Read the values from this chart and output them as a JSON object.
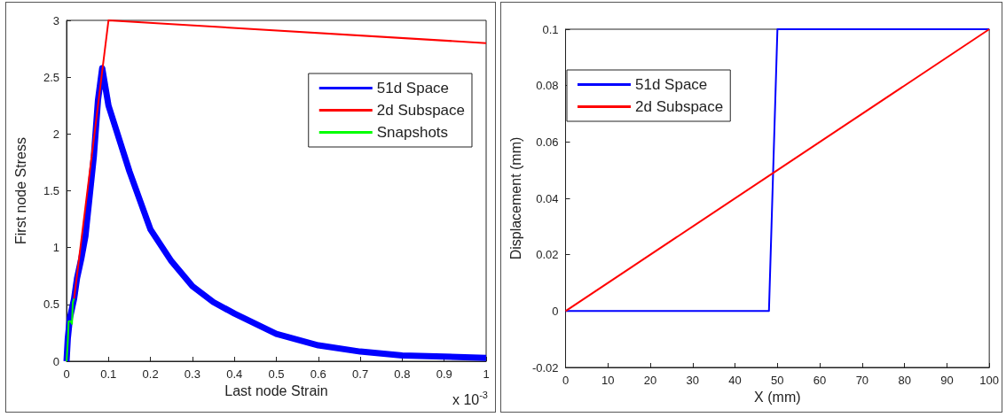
{
  "chart_data": [
    {
      "type": "line",
      "xlabel": "Last node Strain",
      "ylabel": "First node Stress",
      "annotations": [
        "x 10$^{-3}$"
      ],
      "xlim": [
        0,
        1
      ],
      "xticks": [
        0,
        0.1,
        0.2,
        0.3,
        0.4,
        0.5,
        0.6,
        0.7,
        0.8,
        0.9,
        1
      ],
      "ylim": [
        0,
        3
      ],
      "yticks": [
        0,
        0.5,
        1,
        1.5,
        2,
        2.5,
        3
      ],
      "grid": false,
      "legend": "top right",
      "series": [
        {
          "name": "51d Space",
          "color": "#0000ff",
          "x": [
            0,
            0.003,
            0.008,
            0.018,
            0.025,
            0.035,
            0.045,
            0.055,
            0.065,
            0.075,
            0.085,
            0.1,
            0.15,
            0.2,
            0.25,
            0.3,
            0.35,
            0.4,
            0.5,
            0.6,
            0.7,
            0.8,
            0.9,
            1
          ],
          "values": [
            0,
            0.2,
            0.38,
            0.55,
            0.73,
            0.9,
            1.1,
            1.45,
            1.8,
            2.3,
            2.58,
            2.25,
            1.67,
            1.16,
            0.88,
            0.66,
            0.52,
            0.42,
            0.24,
            0.14,
            0.085,
            0.05,
            0.04,
            0.03
          ]
        },
        {
          "name": "2d Subspace",
          "color": "#ff0000",
          "x": [
            0.018,
            0.1,
            1
          ],
          "values": [
            0.55,
            3,
            2.8
          ]
        },
        {
          "name": "Snapshots",
          "color": "#00ff00",
          "x": [
            0,
            0.003,
            0.005,
            0.01,
            0.013,
            0.015,
            0.018
          ],
          "values": [
            0,
            0.17,
            0.35,
            0.35,
            0.33,
            0.52,
            0.55
          ]
        }
      ]
    },
    {
      "type": "line",
      "xlabel": "X (mm)",
      "ylabel": "Displacement (mm)",
      "xlim": [
        0,
        100
      ],
      "xticks": [
        0,
        10,
        20,
        30,
        40,
        50,
        60,
        70,
        80,
        90,
        100
      ],
      "ylim": [
        -0.02,
        0.1
      ],
      "yticks": [
        -0.02,
        0,
        0.02,
        0.04,
        0.06,
        0.08,
        0.1
      ],
      "grid": false,
      "legend": "top left",
      "series": [
        {
          "name": "51d Space",
          "color": "#0000ff",
          "x": [
            0,
            48,
            50,
            100
          ],
          "values": [
            0,
            0,
            0.1,
            0.1
          ]
        },
        {
          "name": "2d Subspace",
          "color": "#ff0000",
          "x": [
            0,
            100
          ],
          "values": [
            0,
            0.1
          ]
        }
      ]
    }
  ]
}
